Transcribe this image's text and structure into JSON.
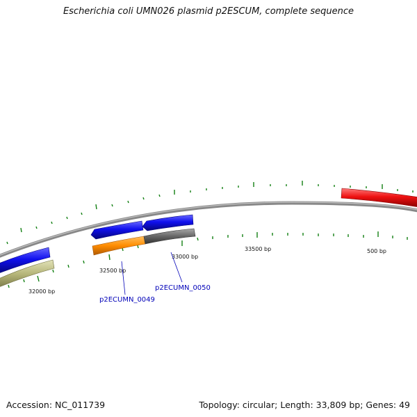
{
  "title": "Escherichia coli UMN026 plasmid p2ESCUM, complete sequence",
  "footer": {
    "accession": "Accession: NC_011739",
    "topology": "Topology: circular; Length: 33,809 bp; Genes: 49"
  },
  "colors": {
    "backbone": "#888888",
    "cds_forward": "#1010ee",
    "cds_reverse_orange": "#ff8c00",
    "cds_reverse_grey": "#666666",
    "cds_reverse_khaki": "#b6b67a",
    "rna_red": "#ee1111",
    "tick": "#138013",
    "label_link": "#0000b8"
  },
  "ticks": [
    {
      "label": "32000 bp"
    },
    {
      "label": "32500 bp"
    },
    {
      "label": "33000 bp"
    },
    {
      "label": "33500 bp"
    },
    {
      "label": "500 bp"
    }
  ],
  "gene_labels": [
    {
      "label": "p2ECUMN_0049"
    },
    {
      "label": "p2ECUMN_0050"
    }
  ]
}
